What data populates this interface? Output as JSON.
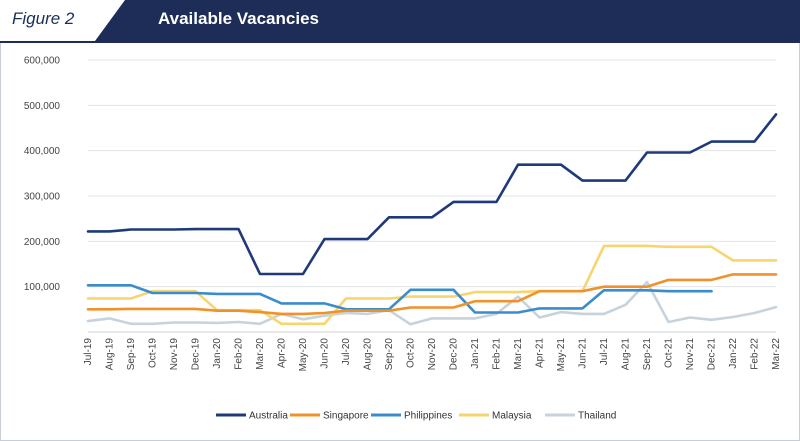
{
  "figure_label": "Figure 2",
  "chart_data": {
    "type": "line",
    "title": "Available Vacancies",
    "xlabel": "",
    "ylabel": "",
    "ylim": [
      0,
      600000
    ],
    "yticks": [
      100000,
      200000,
      300000,
      400000,
      500000,
      600000
    ],
    "ytick_labels": [
      "100,000",
      "200,000",
      "300,000",
      "400,000",
      "500,000",
      "600,000"
    ],
    "grid": true,
    "legend_position": "bottom",
    "categories": [
      "Jul-19",
      "Aug-19",
      "Sep-19",
      "Oct-19",
      "Nov-19",
      "Dec-19",
      "Jan-20",
      "Feb-20",
      "Mar-20",
      "Apr-20",
      "May-20",
      "Jun-20",
      "Jul-20",
      "Aug-20",
      "Sep-20",
      "Oct-20",
      "Nov-20",
      "Dec-20",
      "Jan-21",
      "Feb-21",
      "Mar-21",
      "Apr-21",
      "May-21",
      "Jun-21",
      "Jul-21",
      "Aug-21",
      "Sep-21",
      "Oct-21",
      "Nov-21",
      "Dec-21",
      "Jan-22",
      "Feb-22",
      "Mar-22"
    ],
    "series": [
      {
        "name": "Australia",
        "color": "#1f3a7a",
        "values": [
          222000,
          222000,
          226000,
          226000,
          226000,
          227000,
          227000,
          227000,
          128000,
          128000,
          128000,
          205000,
          205000,
          205000,
          253000,
          253000,
          253000,
          287000,
          287000,
          287000,
          369000,
          369000,
          369000,
          334000,
          334000,
          334000,
          396000,
          396000,
          396000,
          420000,
          420000,
          420000,
          480000
        ]
      },
      {
        "name": "Singapore",
        "color": "#f0922b",
        "values": [
          50000,
          50000,
          51000,
          51000,
          51000,
          51000,
          47000,
          47000,
          44000,
          40000,
          40000,
          42000,
          47000,
          47000,
          47000,
          54000,
          54000,
          54000,
          68000,
          68000,
          68000,
          90000,
          90000,
          90000,
          100000,
          100000,
          100000,
          115000,
          115000,
          115000,
          127000,
          127000,
          127000
        ]
      },
      {
        "name": "Philippines",
        "color": "#3a8ccc",
        "values": [
          103000,
          103000,
          103000,
          86000,
          86000,
          86000,
          84000,
          84000,
          84000,
          63000,
          63000,
          63000,
          50000,
          50000,
          50000,
          93000,
          93000,
          93000,
          43000,
          43000,
          43000,
          52000,
          52000,
          52000,
          92000,
          92000,
          92000,
          90000,
          90000,
          90000,
          null,
          null,
          null
        ]
      },
      {
        "name": "Malaysia",
        "color": "#f7d56e",
        "values": [
          74000,
          74000,
          74000,
          90000,
          90000,
          90000,
          48000,
          48000,
          48000,
          18000,
          18000,
          18000,
          74000,
          74000,
          74000,
          78000,
          78000,
          78000,
          88000,
          88000,
          88000,
          90000,
          90000,
          90000,
          190000,
          190000,
          190000,
          188000,
          188000,
          188000,
          158000,
          158000,
          158000
        ]
      },
      {
        "name": "Thailand",
        "color": "#c7d3dc",
        "values": [
          24000,
          30000,
          18000,
          18000,
          21000,
          21000,
          20000,
          22000,
          18000,
          40000,
          28000,
          36000,
          42000,
          40000,
          48000,
          17000,
          30000,
          30000,
          30000,
          40000,
          78000,
          32000,
          44000,
          40000,
          40000,
          60000,
          110000,
          22000,
          32000,
          27000,
          33000,
          42000,
          55000
        ]
      }
    ]
  }
}
